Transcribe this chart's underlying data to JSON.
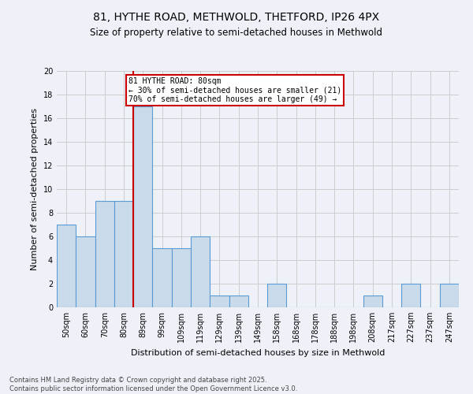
{
  "title_line1": "81, HYTHE ROAD, METHWOLD, THETFORD, IP26 4PX",
  "title_line2": "Size of property relative to semi-detached houses in Methwold",
  "xlabel": "Distribution of semi-detached houses by size in Methwold",
  "ylabel": "Number of semi-detached properties",
  "categories": [
    "50sqm",
    "60sqm",
    "70sqm",
    "80sqm",
    "89sqm",
    "99sqm",
    "109sqm",
    "119sqm",
    "129sqm",
    "139sqm",
    "149sqm",
    "158sqm",
    "168sqm",
    "178sqm",
    "188sqm",
    "198sqm",
    "208sqm",
    "217sqm",
    "227sqm",
    "237sqm",
    "247sqm"
  ],
  "values": [
    7,
    6,
    9,
    9,
    17,
    5,
    5,
    6,
    1,
    1,
    0,
    2,
    0,
    0,
    0,
    0,
    1,
    0,
    2,
    0,
    2
  ],
  "bar_color": "#c9daea",
  "bar_edge_color": "#5b9bd5",
  "subject_bar_index": 3,
  "subject_sqm": 80,
  "subject_label": "81 HYTHE ROAD: 80sqm",
  "pct_smaller": 30,
  "pct_larger": 70,
  "n_smaller": 21,
  "n_larger": 49,
  "annotation_box_color": "#ffffff",
  "annotation_box_edge": "#cc0000",
  "subject_line_color": "#cc0000",
  "grid_color": "#cccccc",
  "bg_color": "#eef2f8",
  "footnote": "Contains HM Land Registry data © Crown copyright and database right 2025.\nContains public sector information licensed under the Open Government Licence v3.0.",
  "ylim": [
    0,
    20
  ],
  "yticks": [
    0,
    2,
    4,
    6,
    8,
    10,
    12,
    14,
    16,
    18,
    20
  ],
  "title_fontsize": 10,
  "subtitle_fontsize": 8.5,
  "tick_fontsize": 7,
  "axis_label_fontsize": 8,
  "footnote_fontsize": 6
}
